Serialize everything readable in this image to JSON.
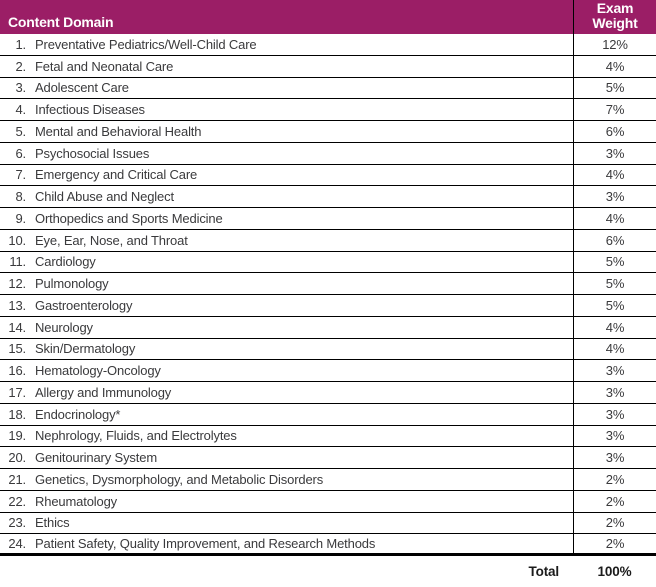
{
  "colors": {
    "header_bg": "#9b1e66",
    "header_text": "#ffffff",
    "body_text": "#3a3a3c",
    "border": "#000000"
  },
  "table": {
    "header": {
      "domain": "Content Domain",
      "weight": "Exam Weight"
    },
    "rows": [
      {
        "num": "1.",
        "label": "Preventative Pediatrics/Well-Child Care",
        "weight": "12%"
      },
      {
        "num": "2.",
        "label": "Fetal and Neonatal Care",
        "weight": "4%"
      },
      {
        "num": "3.",
        "label": "Adolescent Care",
        "weight": "5%"
      },
      {
        "num": "4.",
        "label": "Infectious Diseases",
        "weight": "7%"
      },
      {
        "num": "5.",
        "label": "Mental and Behavioral Health",
        "weight": "6%"
      },
      {
        "num": "6.",
        "label": "Psychosocial Issues",
        "weight": "3%"
      },
      {
        "num": "7.",
        "label": "Emergency and Critical Care",
        "weight": "4%"
      },
      {
        "num": "8.",
        "label": "Child Abuse and Neglect",
        "weight": "3%"
      },
      {
        "num": "9.",
        "label": "Orthopedics and Sports Medicine",
        "weight": "4%"
      },
      {
        "num": "10.",
        "label": "Eye, Ear, Nose, and Throat",
        "weight": "6%"
      },
      {
        "num": "11.",
        "label": "Cardiology",
        "weight": "5%"
      },
      {
        "num": "12.",
        "label": "Pulmonology",
        "weight": "5%"
      },
      {
        "num": "13.",
        "label": "Gastroenterology",
        "weight": "5%"
      },
      {
        "num": "14.",
        "label": "Neurology",
        "weight": "4%"
      },
      {
        "num": "15.",
        "label": "Skin/Dermatology",
        "weight": "4%"
      },
      {
        "num": "16.",
        "label": "Hematology-Oncology",
        "weight": "3%"
      },
      {
        "num": "17.",
        "label": "Allergy and Immunology",
        "weight": "3%"
      },
      {
        "num": "18.",
        "label": "Endocrinology*",
        "weight": "3%"
      },
      {
        "num": "19.",
        "label": "Nephrology, Fluids, and Electrolytes",
        "weight": "3%"
      },
      {
        "num": "20.",
        "label": "Genitourinary System",
        "weight": "3%"
      },
      {
        "num": "21.",
        "label": "Genetics, Dysmorphology, and Metabolic Disorders",
        "weight": "2%"
      },
      {
        "num": "22.",
        "label": "Rheumatology",
        "weight": "2%"
      },
      {
        "num": "23.",
        "label": "Ethics",
        "weight": "2%"
      },
      {
        "num": "24.",
        "label": "Patient Safety, Quality Improvement, and Research Methods",
        "weight": "2%"
      }
    ],
    "footer": {
      "label": "Total",
      "value": "100%"
    }
  }
}
